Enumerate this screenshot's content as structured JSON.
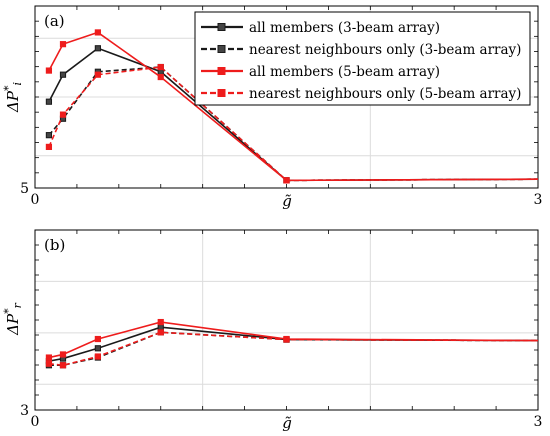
{
  "colors": {
    "three_beam": "#1a1a1a",
    "five_beam": "#ee1c1c",
    "grid": "#dcdcdc",
    "axes": "#000000"
  },
  "chart_data": [
    {
      "panel": "(a)",
      "type": "line",
      "xlabel": "g̃",
      "ylabel": "ΔP*i",
      "xlim": [
        0,
        3
      ],
      "ylim": [
        5,
        8.1
      ],
      "x_ticks": [
        {
          "value": 0,
          "label": "0"
        },
        {
          "value": 3,
          "label": "3"
        }
      ],
      "y_ticks": [
        {
          "value": 5,
          "label": "5"
        }
      ],
      "grid": true,
      "legend_position": "top-right",
      "series": [
        {
          "name": "all members (3-beam array)",
          "color": "three_beam",
          "dash": "solid",
          "marker_fill": "#444444",
          "x": [
            0.083,
            0.167,
            0.375,
            0.75,
            1.5
          ],
          "y": [
            6.47,
            6.93,
            7.38,
            6.98,
            5.13
          ]
        },
        {
          "name": "nearest neighbours only (3-beam array)",
          "color": "three_beam",
          "dash": "dashed",
          "marker_fill": "#444444",
          "x": [
            0.083,
            0.167,
            0.375,
            0.75,
            1.5
          ],
          "y": [
            5.9,
            6.18,
            6.98,
            7.06,
            5.13
          ]
        },
        {
          "name": "all members (5-beam array)",
          "color": "five_beam",
          "dash": "solid",
          "marker_fill": "#ee1c1c",
          "x": [
            0.083,
            0.167,
            0.375,
            0.75,
            1.5
          ],
          "y": [
            7.0,
            7.45,
            7.65,
            6.89,
            5.13
          ]
        },
        {
          "name": "nearest neighbours only (5-beam array)",
          "color": "five_beam",
          "dash": "dashed",
          "marker_fill": "#ee1c1c",
          "x": [
            0.083,
            0.167,
            0.375,
            0.75,
            1.5
          ],
          "y": [
            5.7,
            6.25,
            6.93,
            7.06,
            5.13
          ]
        }
      ],
      "tail": {
        "x_end": 3,
        "y_end": 5.15
      }
    },
    {
      "panel": "(b)",
      "type": "line",
      "xlabel": "g̃",
      "ylabel": "ΔP*r",
      "xlim": [
        0,
        3
      ],
      "ylim": [
        3,
        6.5
      ],
      "x_ticks": [
        {
          "value": 0,
          "label": "0"
        },
        {
          "value": 3,
          "label": "3"
        }
      ],
      "y_ticks": [
        {
          "value": 3,
          "label": "3"
        }
      ],
      "grid": true,
      "series": [
        {
          "name": "all members (3-beam array)",
          "color": "three_beam",
          "dash": "solid",
          "marker_fill": "#444444",
          "x": [
            0.083,
            0.167,
            0.375,
            0.75,
            1.5
          ],
          "y": [
            3.95,
            4.0,
            4.2,
            4.61,
            4.37
          ]
        },
        {
          "name": "nearest neighbours only (3-beam array)",
          "color": "three_beam",
          "dash": "dashed",
          "marker_fill": "#444444",
          "x": [
            0.083,
            0.167,
            0.375,
            0.75,
            1.5
          ],
          "y": [
            3.87,
            3.87,
            4.02,
            4.51,
            4.37
          ]
        },
        {
          "name": "all members (5-beam array)",
          "color": "five_beam",
          "dash": "solid",
          "marker_fill": "#ee1c1c",
          "x": [
            0.083,
            0.167,
            0.375,
            0.75,
            1.5
          ],
          "y": [
            4.02,
            4.08,
            4.38,
            4.71,
            4.38
          ]
        },
        {
          "name": "nearest neighbours only (5-beam array)",
          "color": "five_beam",
          "dash": "dashed",
          "marker_fill": "#ee1c1c",
          "x": [
            0.083,
            0.167,
            0.375,
            0.75,
            1.5
          ],
          "y": [
            3.9,
            3.87,
            4.04,
            4.51,
            4.37
          ]
        }
      ],
      "tail": {
        "x_end": 3,
        "y_end": 4.35
      }
    }
  ]
}
